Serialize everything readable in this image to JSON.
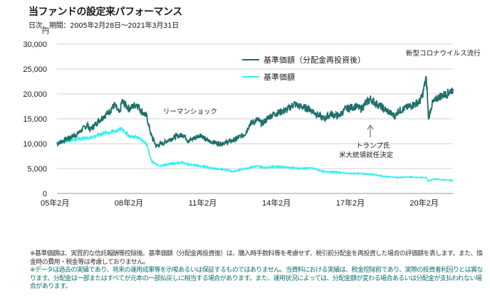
{
  "header": {
    "title": "当ファンドの設定来パフォーマンス",
    "subtitle": "日次、期間：2005年2月28日～2021年3月31日"
  },
  "colors": {
    "reinvested": "#1f6f6a",
    "nav": "#33f0f0"
  },
  "chart_data": {
    "type": "line",
    "title": "当ファンドの設定来パフォーマンス",
    "ylabel": "円",
    "xlabel": "",
    "ylim": [
      0,
      30000
    ],
    "xlim": [
      2005.16,
      2021.25
    ],
    "yticks": [
      0,
      5000,
      10000,
      15000,
      20000,
      25000,
      30000
    ],
    "ytick_labels": [
      "0",
      "5,000",
      "10,000",
      "15,000",
      "20,000",
      "25,000",
      "30,000"
    ],
    "xticks": [
      2005.08,
      2008.08,
      2011.08,
      2014.08,
      2017.08,
      2020.08
    ],
    "xtick_labels": [
      "05年2月",
      "08年2月",
      "11年2月",
      "14年2月",
      "17年2月",
      "20年2月"
    ],
    "grid": true,
    "legend": "top-center",
    "series": [
      {
        "name": "基準価額（分配金再投資後）",
        "x": [
          2005.16,
          2005.5,
          2006.0,
          2006.4,
          2006.5,
          2006.9,
          2007.3,
          2007.5,
          2007.7,
          2007.8,
          2008.1,
          2008.4,
          2008.6,
          2008.8,
          2009.0,
          2009.2,
          2009.5,
          2010.0,
          2010.3,
          2010.5,
          2011.0,
          2011.2,
          2011.5,
          2011.8,
          2012.0,
          2012.4,
          2012.8,
          2013.0,
          2013.3,
          2013.5,
          2013.8,
          2014.0,
          2014.5,
          2014.8,
          2015.0,
          2015.4,
          2015.7,
          2016.0,
          2016.3,
          2016.6,
          2016.9,
          2017.3,
          2017.5,
          2017.9,
          2018.0,
          2018.3,
          2018.6,
          2018.9,
          2019.0,
          2019.5,
          2019.9,
          2020.0,
          2020.15,
          2020.2,
          2020.25,
          2020.4,
          2020.7,
          2021.0,
          2021.25
        ],
        "values": [
          10000,
          10800,
          12000,
          13800,
          12800,
          14800,
          16500,
          17800,
          16000,
          18500,
          17000,
          18000,
          16500,
          15500,
          11500,
          9500,
          10200,
          11500,
          11800,
          10500,
          11800,
          10800,
          10300,
          10000,
          10200,
          10800,
          12000,
          14000,
          14800,
          14000,
          15500,
          16000,
          16800,
          18000,
          17500,
          17000,
          16000,
          15000,
          16000,
          15500,
          17000,
          17500,
          17000,
          19000,
          18500,
          17500,
          16500,
          15500,
          16500,
          17500,
          18500,
          19500,
          23000,
          21000,
          15000,
          18000,
          19500,
          20000,
          21000
        ]
      },
      {
        "name": "基準価額",
        "x": [
          2005.16,
          2005.5,
          2006.0,
          2006.5,
          2007.0,
          2007.5,
          2007.8,
          2008.1,
          2008.5,
          2008.8,
          2009.0,
          2009.3,
          2009.8,
          2010.3,
          2010.5,
          2011.0,
          2011.5,
          2012.0,
          2012.3,
          2012.8,
          2013.3,
          2013.6,
          2014.0,
          2014.5,
          2015.0,
          2015.5,
          2016.0,
          2016.5,
          2017.0,
          2017.5,
          2018.0,
          2018.5,
          2019.0,
          2019.5,
          2020.0,
          2020.15,
          2020.25,
          2020.5,
          2021.0,
          2021.25
        ],
        "values": [
          10000,
          10500,
          11000,
          11200,
          12000,
          12500,
          13000,
          11500,
          11200,
          10000,
          6500,
          5500,
          6000,
          6200,
          5800,
          5500,
          5000,
          4800,
          4400,
          5000,
          5500,
          5200,
          5400,
          5300,
          5000,
          5100,
          4400,
          4300,
          4000,
          4000,
          3800,
          3400,
          3200,
          3300,
          3200,
          3200,
          2500,
          2900,
          2700,
          2600
        ]
      }
    ],
    "annotations": [
      {
        "text": "リーマンショック",
        "x": 2010.5,
        "y": 16000
      },
      {
        "text": "新型コロナウイルス流行",
        "x": 2020.2,
        "y": 27800
      },
      {
        "text": "トランプ氏",
        "x": 2017.9,
        "y": 9800
      },
      {
        "text": "米大統領就任決定",
        "x": 2017.9,
        "y": 7800
      }
    ]
  },
  "notes": {
    "note1": "※基準価額は、実質的な信託報酬等控除後。基準価額（分配金再投資後）は、購入時手数料等を考慮せず、税引前分配金を再投資した場合の評価額を表します。また、換金時の費用・税金等は考慮しておりません。",
    "note2": "※データは過去の実績であり、将来の運用成果等を示唆あるいは保証するものではありません。当資料における実績は、税金控除前であり、実際の投資者利回りとは異なります。分配金は一部またはすべてが元本の一部払戻しに相当する場合があります。また、運用状況によっては、分配金額が変わる場合あるいは分配金が支払われない場合があります。"
  }
}
